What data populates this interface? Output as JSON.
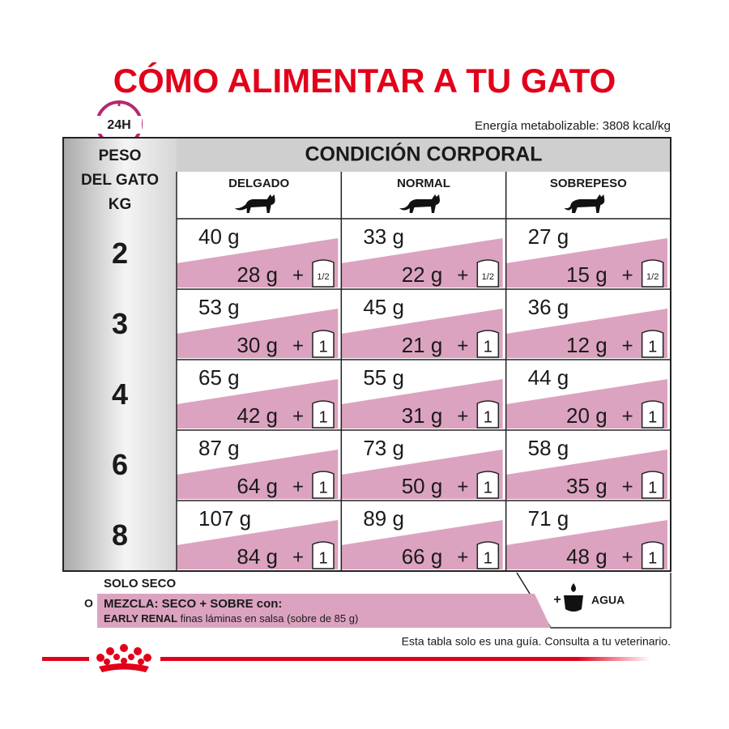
{
  "title": "CÓMO ALIMENTAR A TU GATO",
  "clock_label": "24H",
  "energy": "Energía metabolizable: 3808 kcal/kg",
  "table": {
    "weight_header": [
      "PESO",
      "DEL GATO",
      "KG"
    ],
    "condition_header": "CONDICIÓN CORPORAL",
    "columns": [
      "DELGADO",
      "NORMAL",
      "SOBREPESO"
    ],
    "plus": "+",
    "rows": [
      {
        "weight": "2",
        "cells": [
          {
            "dry": "40 g",
            "mix": "28 g",
            "pouch": "1/2"
          },
          {
            "dry": "33 g",
            "mix": "22 g",
            "pouch": "1/2"
          },
          {
            "dry": "27 g",
            "mix": "15 g",
            "pouch": "1/2"
          }
        ]
      },
      {
        "weight": "3",
        "cells": [
          {
            "dry": "53 g",
            "mix": "30 g",
            "pouch": "1"
          },
          {
            "dry": "45 g",
            "mix": "21 g",
            "pouch": "1"
          },
          {
            "dry": "36 g",
            "mix": "12 g",
            "pouch": "1"
          }
        ]
      },
      {
        "weight": "4",
        "cells": [
          {
            "dry": "65 g",
            "mix": "42 g",
            "pouch": "1"
          },
          {
            "dry": "55 g",
            "mix": "31 g",
            "pouch": "1"
          },
          {
            "dry": "44 g",
            "mix": "20 g",
            "pouch": "1"
          }
        ]
      },
      {
        "weight": "6",
        "cells": [
          {
            "dry": "87 g",
            "mix": "64 g",
            "pouch": "1"
          },
          {
            "dry": "73 g",
            "mix": "50 g",
            "pouch": "1"
          },
          {
            "dry": "58 g",
            "mix": "35 g",
            "pouch": "1"
          }
        ]
      },
      {
        "weight": "8",
        "cells": [
          {
            "dry": "107 g",
            "mix": "84 g",
            "pouch": "1"
          },
          {
            "dry": "89 g",
            "mix": "66 g",
            "pouch": "1"
          },
          {
            "dry": "71 g",
            "mix": "48 g",
            "pouch": "1"
          }
        ]
      }
    ]
  },
  "legend": {
    "dry_only": "SOLO SECO",
    "or": "O",
    "mix_title": "MEZCLA: SECO + SOBRE con:",
    "mix_product": "EARLY RENAL",
    "mix_desc": " finas láminas en salsa (sobre de 85 g)",
    "plus": "+",
    "water": "AGUA"
  },
  "footer": "Esta tabla solo es una guía. Consulta a tu veterinario."
}
